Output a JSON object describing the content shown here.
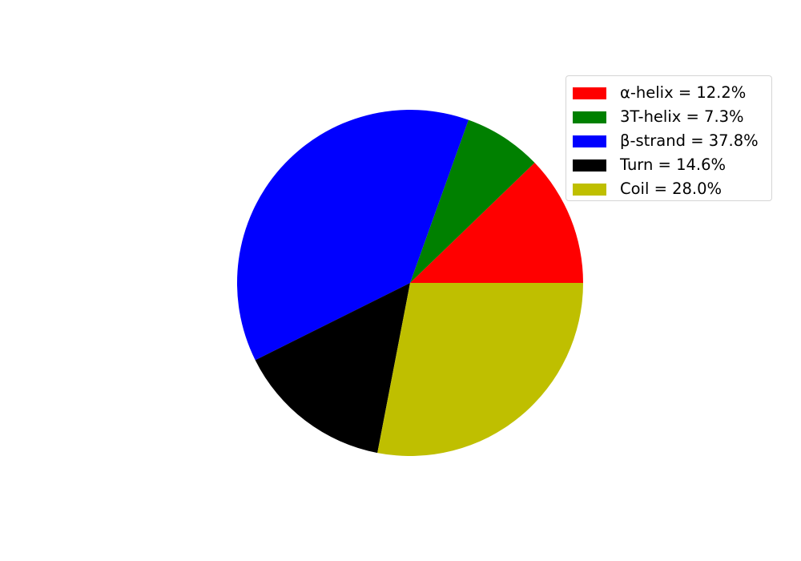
{
  "chart_data": {
    "type": "pie",
    "legend_placement": "upper-right",
    "slices": [
      {
        "label": "α-helix = 12.2%",
        "value": 12.2,
        "color": "#ff0000"
      },
      {
        "label": "3T-helix = 7.3%",
        "value": 7.3,
        "color": "#008000"
      },
      {
        "label": "β-strand = 37.8%",
        "value": 37.8,
        "color": "#0000ff"
      },
      {
        "label": "Turn = 14.6%",
        "value": 14.6,
        "color": "#000000"
      },
      {
        "label": "Coil = 28.0%",
        "value": 28.0,
        "color": "#bfbf00"
      }
    ]
  }
}
